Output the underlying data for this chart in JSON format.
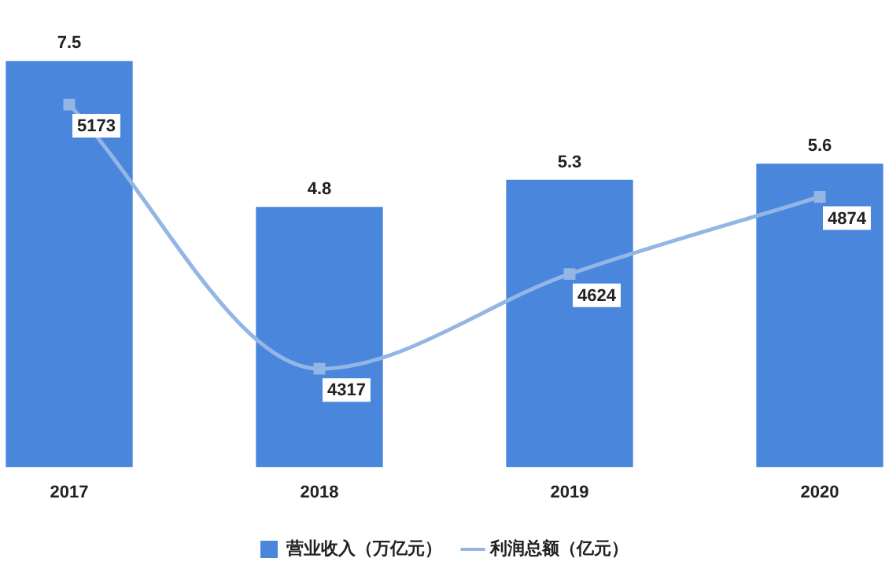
{
  "chart_data": {
    "type": "bar",
    "categories": [
      "2017",
      "2018",
      "2019",
      "2020"
    ],
    "series": [
      {
        "name": "营业收入（万亿元）",
        "color": "#4a86dc",
        "values": [
          7.5,
          4.8,
          5.3,
          5.6
        ]
      },
      {
        "name": "利润总额（亿元）",
        "type": "line",
        "axis": "y2",
        "color": "#93b6e4",
        "values": [
          5173,
          4317,
          4624,
          4874
        ]
      }
    ],
    "tick_labels": "x",
    "data_labels": true,
    "legend": "bottom",
    "marker": "square",
    "grid": false
  }
}
